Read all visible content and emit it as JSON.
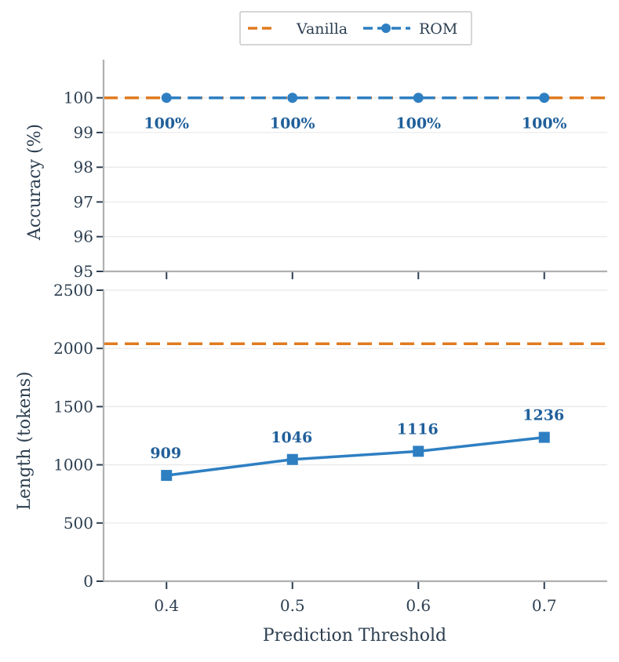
{
  "chart_data": [
    {
      "type": "line",
      "panel": "top",
      "ylabel": "Accuracy (%)",
      "xlabel": "",
      "x": [
        0.4,
        0.5,
        0.6,
        0.7
      ],
      "xlim": [
        0.35,
        0.75
      ],
      "ylim": [
        95,
        101.1
      ],
      "yticks": [
        95,
        96,
        97,
        98,
        99,
        100
      ],
      "ytick_labels": [
        "95",
        "96",
        "97",
        "98",
        "99",
        "100"
      ],
      "grid": true,
      "series": [
        {
          "name": "Vanilla",
          "style": "dashed-horizontal",
          "color": "#e07b1f",
          "values": [
            100,
            100,
            100,
            100
          ]
        },
        {
          "name": "ROM",
          "style": "dashed-circle-markers",
          "color": "#2e7fc2",
          "values": [
            100,
            100,
            100,
            100
          ],
          "data_labels": [
            "100%",
            "100%",
            "100%",
            "100%"
          ],
          "label_color": "#1f5f9a"
        }
      ]
    },
    {
      "type": "line",
      "panel": "bottom",
      "ylabel": "Length (tokens)",
      "xlabel": "Prediction Threshold",
      "x": [
        0.4,
        0.5,
        0.6,
        0.7
      ],
      "xtick_labels": [
        "0.4",
        "0.5",
        "0.6",
        "0.7"
      ],
      "xlim": [
        0.35,
        0.75
      ],
      "ylim": [
        0,
        2500
      ],
      "yticks": [
        0,
        500,
        1000,
        1500,
        2000,
        2500
      ],
      "ytick_labels": [
        "0",
        "500",
        "1000",
        "1500",
        "2000",
        "2500"
      ],
      "grid": true,
      "series": [
        {
          "name": "Vanilla",
          "style": "dashed-horizontal",
          "color": "#e07b1f",
          "values": [
            2040,
            2040,
            2040,
            2040
          ]
        },
        {
          "name": "ROM",
          "style": "solid-square-markers",
          "color": "#2e7fc2",
          "values": [
            909,
            1046,
            1116,
            1236
          ],
          "data_labels": [
            "909",
            "1046",
            "1116",
            "1236"
          ],
          "label_color": "#1f5f9a"
        }
      ]
    }
  ],
  "legend": {
    "placement": "top-center",
    "entries": [
      {
        "label": "Vanilla",
        "color": "#e07b1f",
        "marker": "none",
        "linestyle": "dashed"
      },
      {
        "label": "ROM",
        "color": "#2e7fc2",
        "marker": "circle",
        "linestyle": "dashed"
      }
    ]
  }
}
